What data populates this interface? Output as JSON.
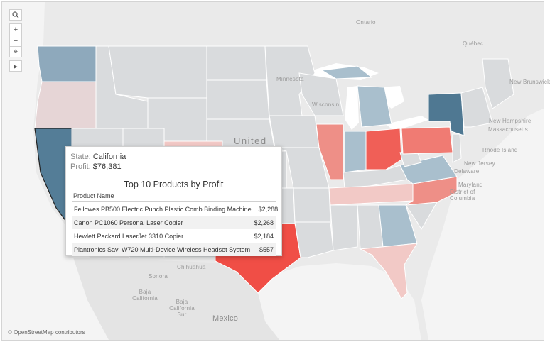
{
  "map": {
    "labels": {
      "ontario": "Ontario",
      "quebec": "Québec",
      "new_brunswick": "New Brunswick",
      "new_hampshire": "New Hampshire",
      "massachusetts": "Massachusetts",
      "rhode_island": "Rhode Island",
      "new_jersey": "New Jersey",
      "delaware": "Delaware",
      "maryland": "Maryland",
      "district_of_columbia": "District of Columbia",
      "chihuahua": "Chihuahua",
      "sonora": "Sonora",
      "baja_california": "Baja California",
      "baja_california_sur": "Baja California Sur",
      "mexico": "Mexico",
      "united_states": "United",
      "minnesota": "Minnesota",
      "wisconsin": "Wisconsin"
    },
    "colors": {
      "background": "#eaeaea",
      "neutral_state": "#d9dbdd",
      "water": "#ffffff",
      "strong_positive": "#4f7892",
      "light_positive": "#a9bfcd",
      "strong_negative": "#f04e46",
      "medium_negative": "#ee8a82",
      "light_negative": "#f2c9c6"
    }
  },
  "toolbar": {
    "search_icon": "search-icon",
    "zoom_in": "+",
    "zoom_out": "−",
    "pin": "⌖",
    "expand": "▸"
  },
  "attribution": "© OpenStreetMap contributors",
  "tooltip": {
    "state_label": "State:",
    "state_value": "California",
    "profit_label": "Profit:",
    "profit_value": "$76,381",
    "title": "Top 10 Products by Profit",
    "column_header": "Product Name",
    "rows": [
      {
        "name": "Fellowes PB500 Electric Punch Plastic Comb Binding Machine ...",
        "value": "$2,288"
      },
      {
        "name": "Canon PC1060 Personal Laser Copier",
        "value": "$2,268"
      },
      {
        "name": "Hewlett Packard LaserJet 3310 Copier",
        "value": "$2,184"
      },
      {
        "name": "Plantronics Savi W720 Multi-Device Wireless Headset System",
        "value": "$557"
      }
    ]
  }
}
